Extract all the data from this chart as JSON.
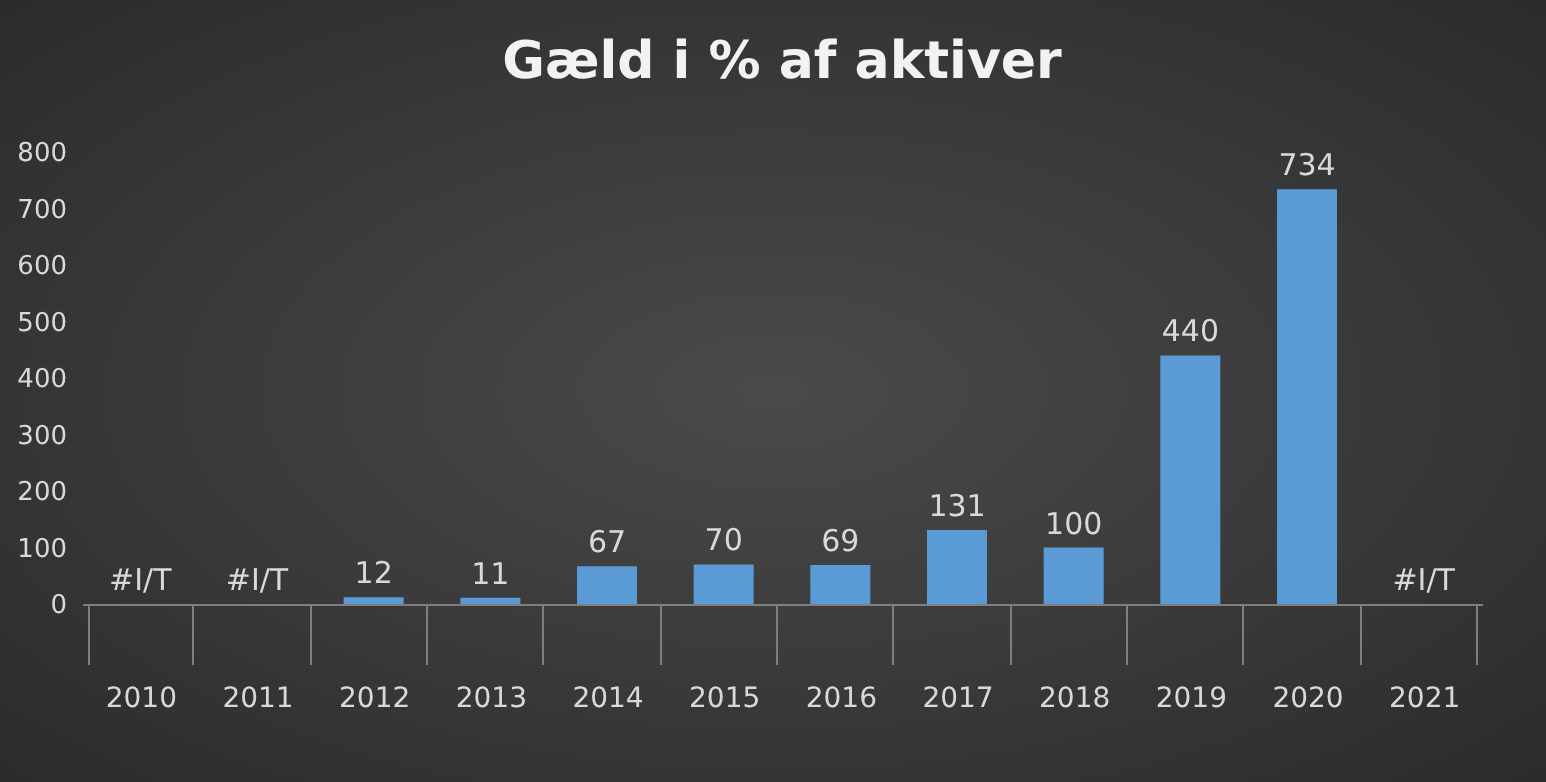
{
  "chart_data": {
    "type": "bar",
    "title": "Gæld i % af aktiver",
    "categories": [
      "2010",
      "2011",
      "2012",
      "2013",
      "2014",
      "2015",
      "2016",
      "2017",
      "2018",
      "2019",
      "2020",
      "2021"
    ],
    "values": [
      null,
      null,
      12,
      11,
      67,
      70,
      69,
      131,
      100,
      440,
      734,
      null
    ],
    "value_labels": [
      "#I/T",
      "#I/T",
      "12",
      "11",
      "67",
      "70",
      "69",
      "131",
      "100",
      "440",
      "734",
      "#I/T"
    ],
    "color": "#5b9bd5",
    "ylim": [
      0,
      800
    ],
    "yticks": [
      0,
      100,
      200,
      300,
      400,
      500,
      600,
      700,
      800
    ],
    "grid": false
  }
}
